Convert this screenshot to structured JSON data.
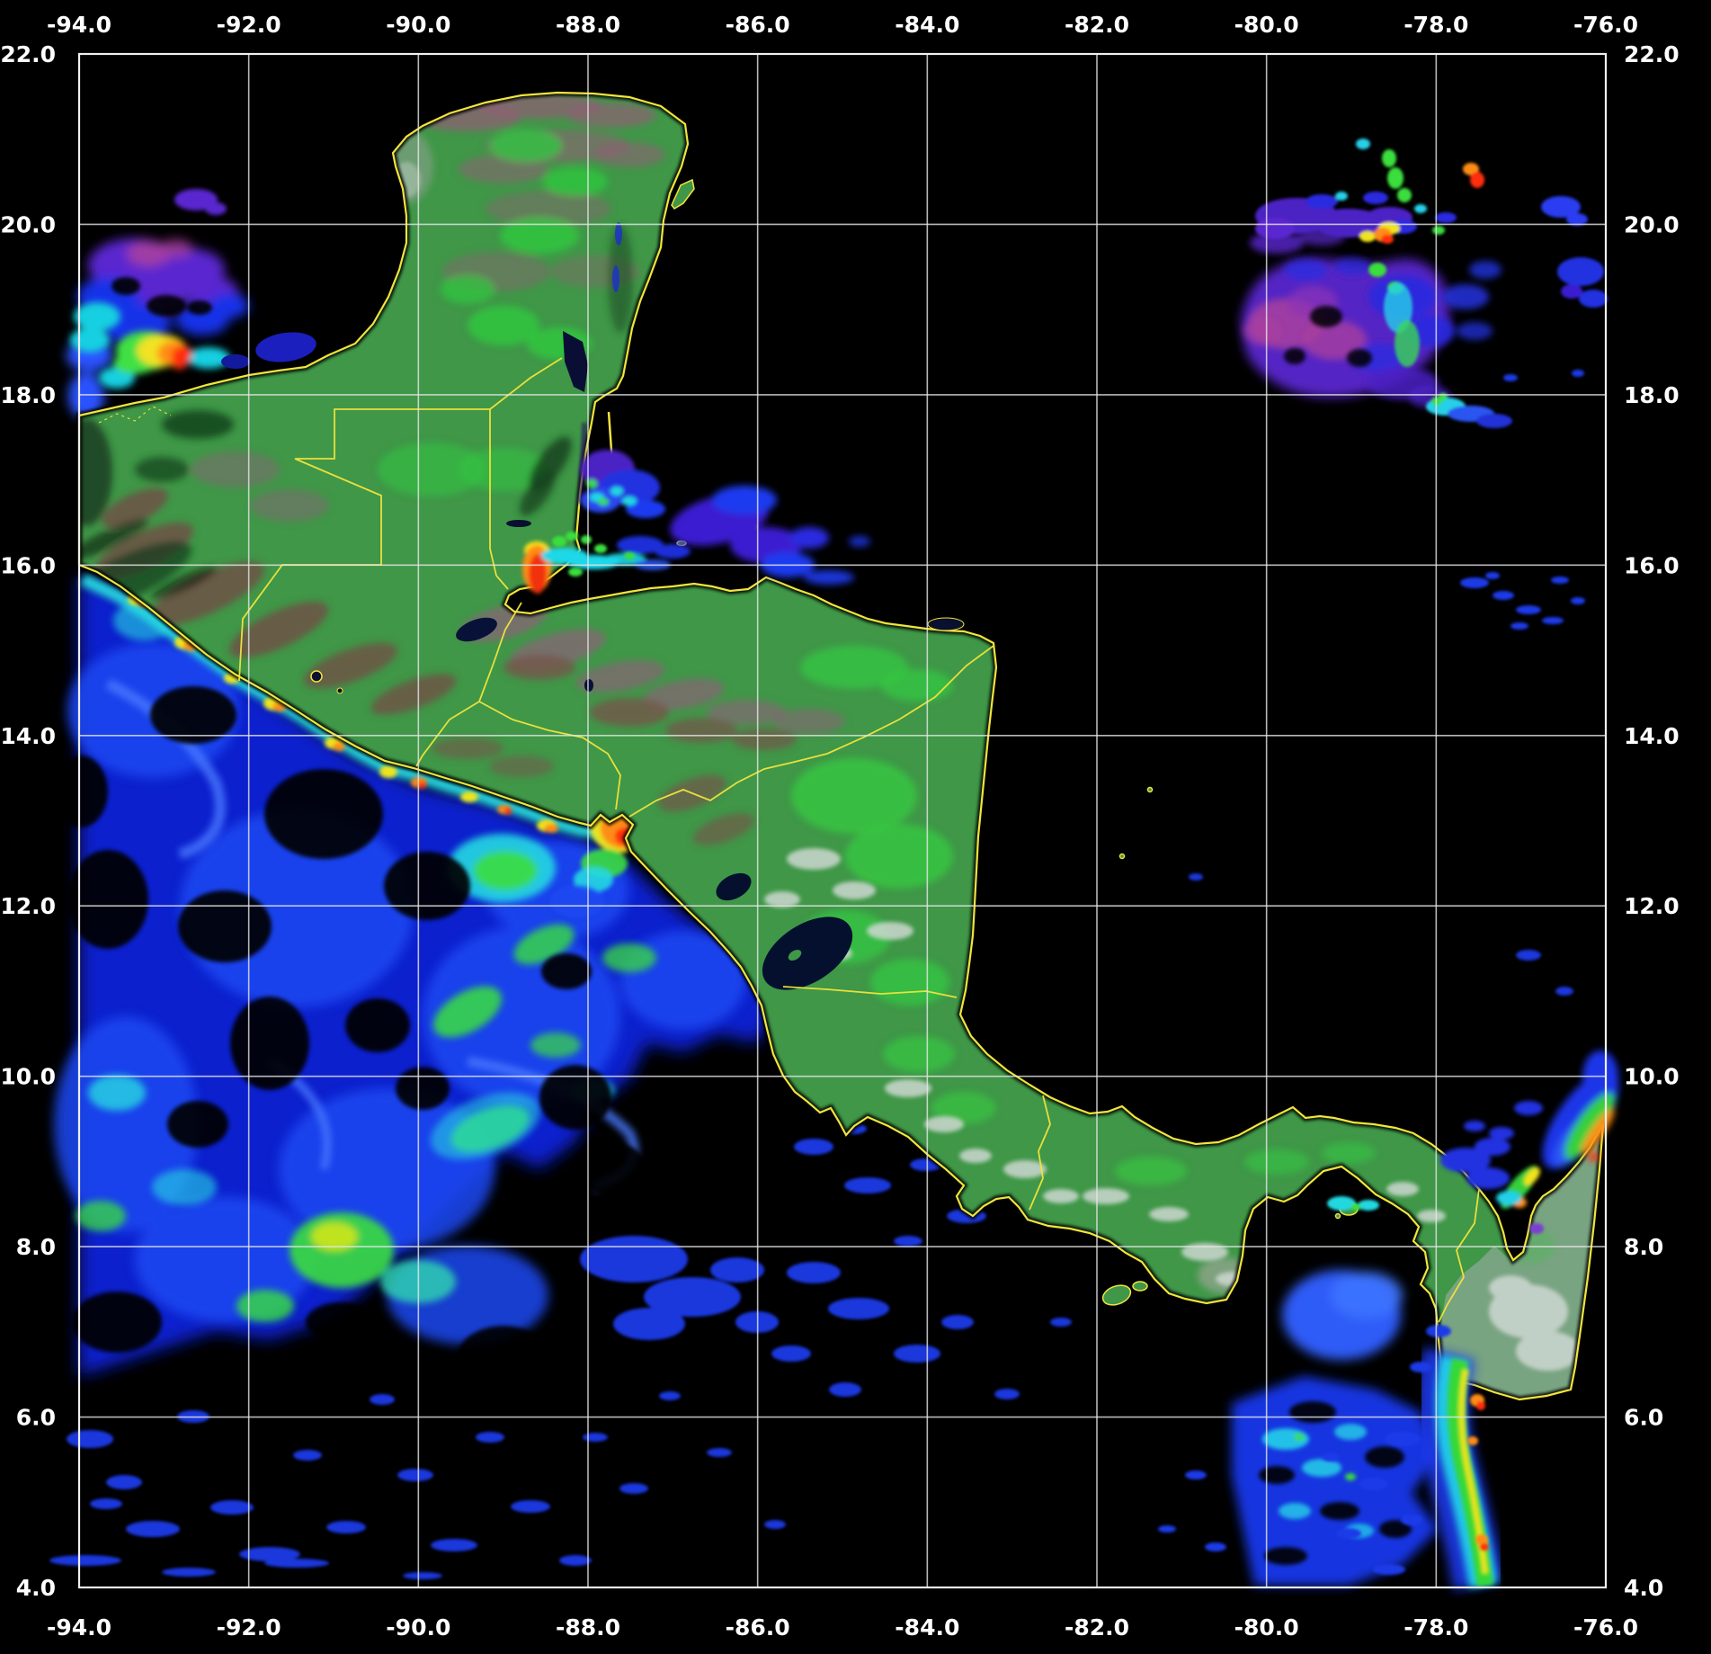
{
  "map": {
    "kind": "satellite-ocean-color-composite",
    "region": "Central America and adjacent Pacific / Caribbean waters",
    "grid": {
      "lon_min": -94.0,
      "lon_max": -76.0,
      "lat_min": 4.0,
      "lat_max": 22.0,
      "step_deg": 2.0,
      "lons": [
        -94,
        -92,
        -90,
        -88,
        -86,
        -84,
        -82,
        -80,
        -78,
        -76
      ],
      "lats": [
        22,
        20,
        18,
        16,
        14,
        12,
        10,
        8,
        6,
        4
      ]
    },
    "axes": {
      "top_labels": [
        "-94.0",
        "-92.0",
        "-90.0",
        "-88.0",
        "-86.0",
        "-84.0",
        "-82.0",
        "-80.0",
        "-78.0",
        "-76.0"
      ],
      "bottom_labels": [
        "-94.0",
        "-92.0",
        "-90.0",
        "-88.0",
        "-86.0",
        "-84.0",
        "-82.0",
        "-80.0",
        "-78.0",
        "-76.0"
      ],
      "left_labels": [
        "22.0",
        "20.0",
        "18.0",
        "16.0",
        "14.0",
        "12.0",
        "10.0",
        "8.0",
        "6.0",
        "4.0"
      ],
      "right_labels": [
        "22.0",
        "20.0",
        "18.0",
        "16.0",
        "14.0",
        "12.0",
        "10.0",
        "8.0",
        "6.0",
        "4.0"
      ]
    },
    "palette": {
      "background": "#000000",
      "grid_line": "#e6e6e6",
      "axis_text": "#ffffff",
      "coastline_border_yellow": "#f2e43c",
      "land_green": "#3f9747",
      "land_bright_green": "#35cb41",
      "land_brown": "#74564a",
      "land_mauve": "#8f5f7a",
      "cloud_white": "#cfd8d2",
      "ocean_blue_low": "#0a23d8",
      "ocean_blue_mid": "#1e49f2",
      "ocean_cyan": "#25d8e2",
      "ocean_green": "#3ade3e",
      "ocean_yellow": "#f0e41e",
      "ocean_orange": "#ff8c12",
      "ocean_red": "#ff2d10",
      "ocean_violet": "#5a28cf",
      "ocean_magenta": "#a83f9f",
      "lake_dark": "#04102e",
      "lagoon_blue": "#1b1fbe"
    },
    "features": [
      {
        "name": "yucatan-peninsula",
        "type": "land"
      },
      {
        "name": "guatemala-belize-honduras",
        "type": "land"
      },
      {
        "name": "el-salvador-nicaragua",
        "type": "land"
      },
      {
        "name": "costa-rica-panama-isthmus",
        "type": "land"
      },
      {
        "name": "nw-colombia-swath",
        "type": "land-swath"
      },
      {
        "name": "country-borders",
        "type": "border",
        "color": "coastline_border_yellow"
      },
      {
        "name": "lake-nicaragua",
        "type": "lake"
      },
      {
        "name": "lake-managua",
        "type": "lake"
      },
      {
        "name": "lake-izabal",
        "type": "lake"
      },
      {
        "name": "laguna-de-terminos",
        "type": "lagoon"
      },
      {
        "name": "bay-of-campeche-plume",
        "type": "chlorophyll-plume",
        "colors": [
          "ocean_violet",
          "ocean_magenta",
          "ocean_cyan",
          "ocean_green",
          "ocean_yellow",
          "ocean_orange",
          "ocean_red"
        ]
      },
      {
        "name": "pacific-chlorophyll-field",
        "type": "chlorophyll-field",
        "colors": [
          "ocean_blue_low",
          "ocean_blue_mid",
          "ocean_cyan",
          "ocean_green",
          "ocean_yellow"
        ]
      },
      {
        "name": "pacific-coastal-upwelling-band",
        "type": "chlorophyll-band",
        "colors": [
          "ocean_cyan",
          "ocean_yellow",
          "ocean_orange",
          "ocean_red"
        ]
      },
      {
        "name": "gulf-of-fonseca-plume",
        "type": "chlorophyll-plume",
        "colors": [
          "ocean_yellow",
          "ocean_orange",
          "ocean_red"
        ]
      },
      {
        "name": "gulf-of-honduras-plume",
        "type": "chlorophyll-plume",
        "colors": [
          "ocean_red",
          "ocean_orange",
          "ocean_cyan"
        ]
      },
      {
        "name": "east-belize-patch",
        "type": "chlorophyll-patch",
        "colors": [
          "ocean_violet",
          "ocean_blue_mid"
        ]
      },
      {
        "name": "jamaica-area-bloom",
        "type": "chlorophyll-cloud",
        "colors": [
          "ocean_violet",
          "ocean_magenta",
          "ocean_blue_mid"
        ]
      },
      {
        "name": "jamaica-north-speck-cluster",
        "type": "chlorophyll-specks",
        "colors": [
          "ocean_cyan",
          "ocean_green",
          "ocean_yellow",
          "ocean_orange",
          "ocean_red"
        ]
      },
      {
        "name": "gulf-of-panama-bloom",
        "type": "chlorophyll-field",
        "colors": [
          "ocean_blue_mid",
          "ocean_cyan"
        ]
      },
      {
        "name": "colombia-caribbean-plume",
        "type": "chlorophyll-plume",
        "colors": [
          "ocean_blue_mid",
          "ocean_green",
          "ocean_orange"
        ]
      },
      {
        "name": "colombia-pacific-plume",
        "type": "chlorophyll-plume",
        "colors": [
          "ocean_blue_mid",
          "ocean_cyan",
          "ocean_green",
          "ocean_yellow",
          "ocean_orange",
          "ocean_red"
        ]
      },
      {
        "name": "southern-scattered-specks",
        "type": "chlorophyll-specks",
        "colors": [
          "ocean_blue_mid"
        ]
      }
    ]
  }
}
